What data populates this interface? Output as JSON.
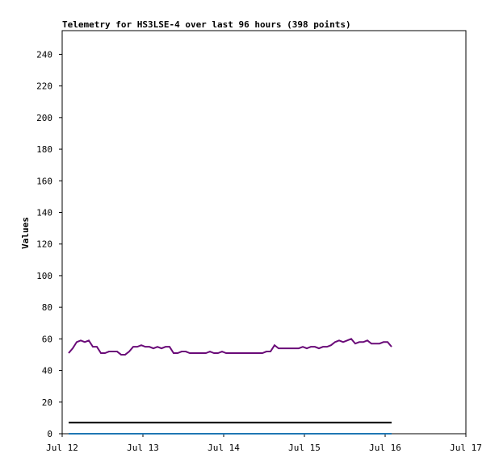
{
  "chart_data": {
    "type": "line",
    "title": "Telemetry for HS3LSE-4 over last 96 hours (398 points)",
    "y_label": "Values",
    "xlim": [
      0,
      5
    ],
    "xticks": [
      {
        "value": 0,
        "label": "Jul 12"
      },
      {
        "value": 1,
        "label": "Jul 13"
      },
      {
        "value": 2,
        "label": "Jul 14"
      },
      {
        "value": 3,
        "label": "Jul 15"
      },
      {
        "value": 4,
        "label": "Jul 16"
      },
      {
        "value": 5,
        "label": "Jul 17"
      }
    ],
    "ylim": [
      0,
      255
    ],
    "yticks": [
      0,
      20,
      40,
      60,
      80,
      100,
      120,
      140,
      160,
      180,
      200,
      220,
      240
    ],
    "series": [
      {
        "color": "#6a0a78",
        "x": [
          0.08,
          0.13,
          0.18,
          0.23,
          0.28,
          0.33,
          0.38,
          0.43,
          0.48,
          0.53,
          0.58,
          0.63,
          0.68,
          0.73,
          0.78,
          0.83,
          0.88,
          0.93,
          0.98,
          1.03,
          1.08,
          1.13,
          1.18,
          1.23,
          1.28,
          1.33,
          1.38,
          1.43,
          1.48,
          1.53,
          1.58,
          1.63,
          1.68,
          1.73,
          1.78,
          1.83,
          1.88,
          1.93,
          1.98,
          2.03,
          2.08,
          2.13,
          2.18,
          2.23,
          2.28,
          2.33,
          2.38,
          2.43,
          2.48,
          2.53,
          2.58,
          2.63,
          2.68,
          2.73,
          2.78,
          2.83,
          2.88,
          2.93,
          2.98,
          3.03,
          3.08,
          3.13,
          3.18,
          3.23,
          3.28,
          3.33,
          3.38,
          3.43,
          3.48,
          3.53,
          3.58,
          3.63,
          3.68,
          3.73,
          3.78,
          3.83,
          3.88,
          3.93,
          3.98,
          4.03,
          4.08
        ],
        "values": [
          51,
          54,
          58,
          59,
          58,
          59,
          55,
          55,
          51,
          51,
          52,
          52,
          52,
          50,
          50,
          52,
          55,
          55,
          56,
          55,
          55,
          54,
          55,
          54,
          55,
          55,
          51,
          51,
          52,
          52,
          51,
          51,
          51,
          51,
          51,
          52,
          51,
          51,
          52,
          51,
          51,
          51,
          51,
          51,
          51,
          51,
          51,
          51,
          51,
          52,
          52,
          56,
          54,
          54,
          54,
          54,
          54,
          54,
          55,
          54,
          55,
          55,
          54,
          55,
          55,
          56,
          58,
          59,
          58,
          59,
          60,
          57,
          58,
          58,
          59,
          57,
          57,
          57,
          58,
          58,
          55
        ]
      },
      {
        "color": "#000000",
        "x": [
          0.08,
          4.08
        ],
        "values": [
          7,
          7
        ]
      },
      {
        "color": "#1f77b4",
        "x": [
          0.08,
          4.08
        ],
        "values": [
          0,
          0
        ]
      }
    ]
  }
}
